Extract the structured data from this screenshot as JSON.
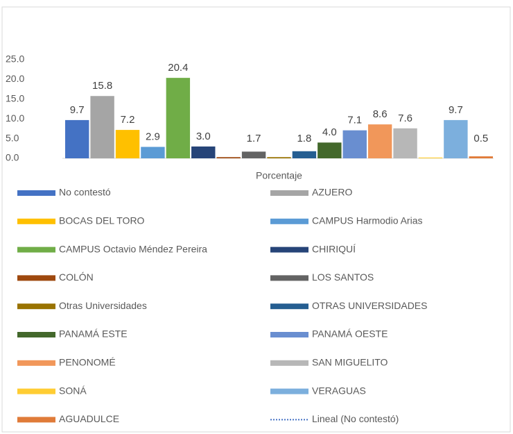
{
  "chart_data": {
    "type": "bar",
    "categories": [
      "Porcentaje"
    ],
    "series": [
      {
        "name": "No contestó",
        "color": "#4472c4",
        "values": [
          9.7
        ],
        "value_labels": [
          "9.7"
        ]
      },
      {
        "name": "AZUERO",
        "color": "#a5a5a5",
        "values": [
          15.8
        ],
        "value_labels": [
          "15.8"
        ]
      },
      {
        "name": "BOCAS DEL TORO",
        "color": "#ffc000",
        "values": [
          7.2
        ],
        "value_labels": [
          "7.2"
        ]
      },
      {
        "name": "CAMPUS Harmodio Arias",
        "color": "#5b9bd5",
        "values": [
          2.9
        ],
        "value_labels": [
          "2.9"
        ]
      },
      {
        "name": "CAMPUS Octavio Méndez Pereira",
        "color": "#70ad47",
        "values": [
          20.4
        ],
        "value_labels": [
          "20.4"
        ]
      },
      {
        "name": "CHIRIQUÍ",
        "color": "#264478",
        "values": [
          3.0
        ],
        "value_labels": [
          "3.0"
        ]
      },
      {
        "name": "COLÓN",
        "color": "#9e480e",
        "values": [
          0.3
        ]
      },
      {
        "name": "LOS SANTOS",
        "color": "#636363",
        "values": [
          1.7
        ],
        "value_labels": [
          "1.7"
        ]
      },
      {
        "name": "Otras Universidades",
        "color": "#997300",
        "values": [
          0.3
        ]
      },
      {
        "name": "OTRAS UNIVERSIDADES",
        "color": "#255e91",
        "values": [
          1.8
        ],
        "value_labels": [
          "1.8"
        ]
      },
      {
        "name": "PANAMÁ ESTE",
        "color": "#43682b",
        "values": [
          4.0
        ],
        "value_labels": [
          "4.0"
        ]
      },
      {
        "name": "PANAMÁ OESTE",
        "color": "#698ed0",
        "values": [
          7.1
        ],
        "value_labels": [
          "7.1"
        ]
      },
      {
        "name": "PENONOMÉ",
        "color": "#f1975a",
        "values": [
          8.6
        ],
        "value_labels": [
          "8.6"
        ]
      },
      {
        "name": "SAN MIGUELITO",
        "color": "#b7b7b7",
        "values": [
          7.6
        ],
        "value_labels": [
          "7.6"
        ]
      },
      {
        "name": "SONÁ",
        "color": "#ffcd33",
        "values": [
          0.2
        ]
      },
      {
        "name": "VERAGUAS",
        "color": "#7cafdd",
        "values": [
          9.7
        ],
        "value_labels": [
          "9.7"
        ]
      },
      {
        "name": "AGUADULCE",
        "color": "#e07b39",
        "values": [
          0.5
        ],
        "value_labels": [
          "0.5"
        ]
      }
    ],
    "trendline": {
      "name": "Lineal (No contestó)",
      "color": "#4472c4"
    },
    "ylim": [
      0,
      25
    ],
    "yticks": [
      {
        "value": 0,
        "label": "0.0"
      },
      {
        "value": 5,
        "label": "5.0"
      },
      {
        "value": 10,
        "label": "10.0"
      },
      {
        "value": 15,
        "label": "15.0"
      },
      {
        "value": 20,
        "label": "20.0"
      },
      {
        "value": 25,
        "label": "25.0"
      }
    ],
    "grid": false
  }
}
